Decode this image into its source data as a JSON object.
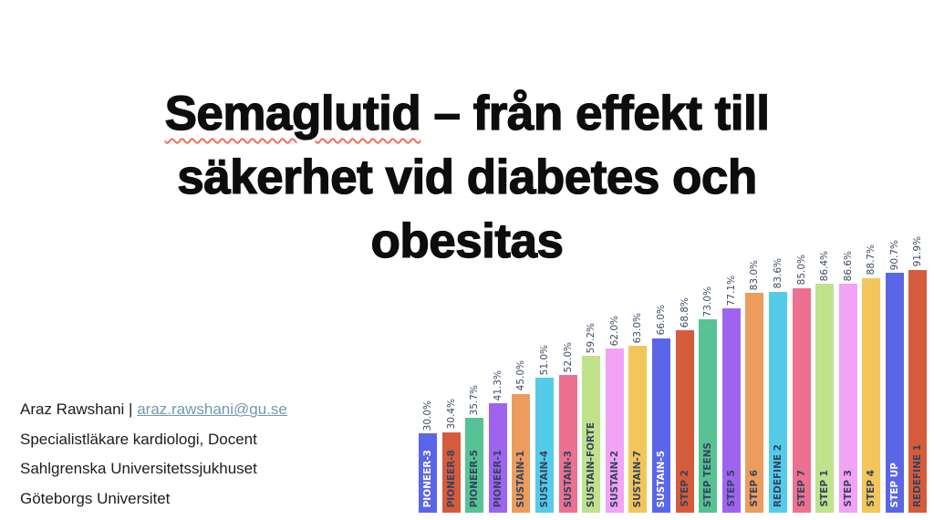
{
  "slide": {
    "title": {
      "word_underlined": "Semaglutid",
      "line1_rest": " – från effekt till",
      "line2": "säkerhet vid diabetes och",
      "line3": "obesitas"
    },
    "author": {
      "name": "Araz Rawshani",
      "separator": " | ",
      "email": "araz.rawshani@gu.se",
      "role": "Specialistläkare kardiologi, Docent",
      "hospital": "Sahlgrenska Universitetssjukhuset",
      "university": "Göteborgs Universitet"
    }
  },
  "colors": {
    "title_text": "#0d0d0d",
    "body_text": "#1c1c1c",
    "email_link": "#6f9aad",
    "spellcheck_underline": "#ef6f60",
    "value_label_text": "#3e4a66",
    "inside_label_dark": "#35425e",
    "inside_label_light": "#ffffff",
    "background": "#ffffff"
  },
  "chart_data": {
    "type": "bar",
    "orientation": "vertical",
    "unit": "%",
    "grid": false,
    "axes_visible": false,
    "ylim": [
      0,
      100
    ],
    "categories": [
      "PIONEER-3",
      "PIONEER-8",
      "PIONEER-5",
      "PIONEER-1",
      "SUSTAIN-1",
      "SUSTAIN-4",
      "SUSTAIN-3",
      "SUSTAIN-FORTE",
      "SUSTAIN-2",
      "SUSTAIN-7",
      "SUSTAIN-5",
      "STEP 2",
      "STEP TEENS",
      "STEP 5",
      "STEP 6",
      "REDEFINE 2",
      "STEP 7",
      "STEP 1",
      "STEP 3",
      "STEP 4",
      "STEP UP",
      "REDEFINE 1"
    ],
    "values": [
      30.0,
      30.4,
      35.7,
      41.3,
      45.0,
      51.0,
      52.0,
      59.2,
      62.0,
      63.0,
      66.0,
      68.8,
      73.0,
      77.1,
      83.0,
      83.6,
      85.0,
      86.4,
      86.6,
      88.7,
      90.7,
      91.9
    ],
    "value_labels": [
      "30.0%",
      "30.4%",
      "35.7%",
      "41.3%",
      "45.0%",
      "51.0%",
      "52.0%",
      "59.2%",
      "62.0%",
      "63.0%",
      "66.0%",
      "68.8%",
      "73.0%",
      "77.1%",
      "83.0%",
      "83.6%",
      "85.0%",
      "86.4%",
      "86.6%",
      "88.7%",
      "90.7%",
      "91.9%"
    ],
    "palette": [
      "#5b65e8",
      "#d45c3c",
      "#57c293",
      "#9e64ef",
      "#ec9c5d",
      "#55cbea",
      "#ec7191",
      "#bfe28b",
      "#f2a3f5",
      "#f2c65a"
    ],
    "white_inside_text_palette_indices": [
      0
    ]
  }
}
